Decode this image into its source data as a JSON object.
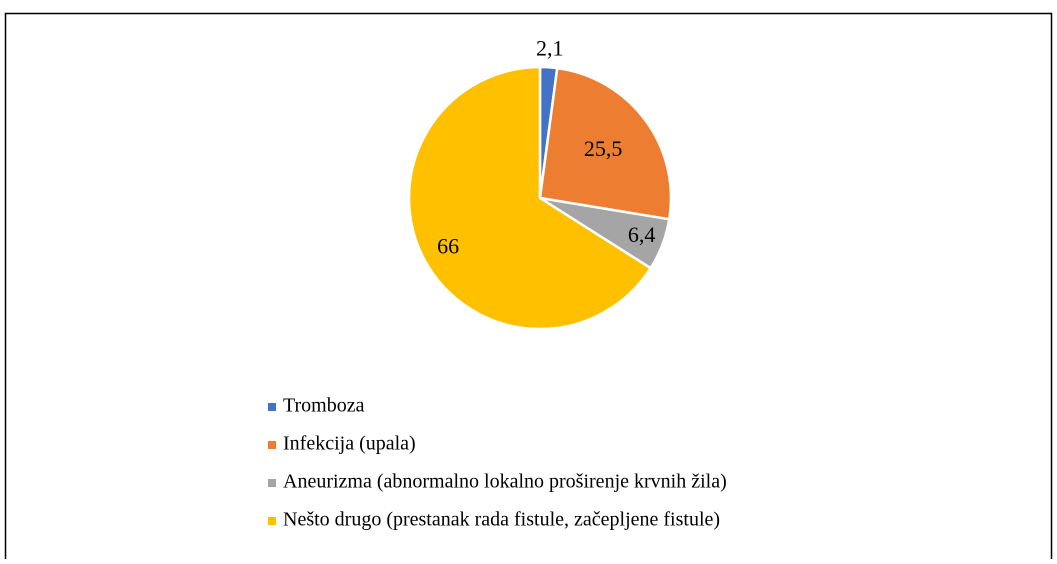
{
  "chart_data": {
    "type": "pie",
    "categories": [
      "Tromboza",
      "Infekcija (upala)",
      "Aneurizma (abnormalno lokalno proširenje krvnih žila)",
      "Nešto drugo (prestanak rada fistule, začepljene fistule)"
    ],
    "values": [
      2.1,
      25.5,
      6.4,
      66
    ],
    "value_labels": [
      "2,1",
      "25,5",
      "6,4",
      "66"
    ],
    "colors": [
      "#4472c4",
      "#ed7d31",
      "#a5a5a5",
      "#ffc000"
    ],
    "legend": "bottom"
  }
}
